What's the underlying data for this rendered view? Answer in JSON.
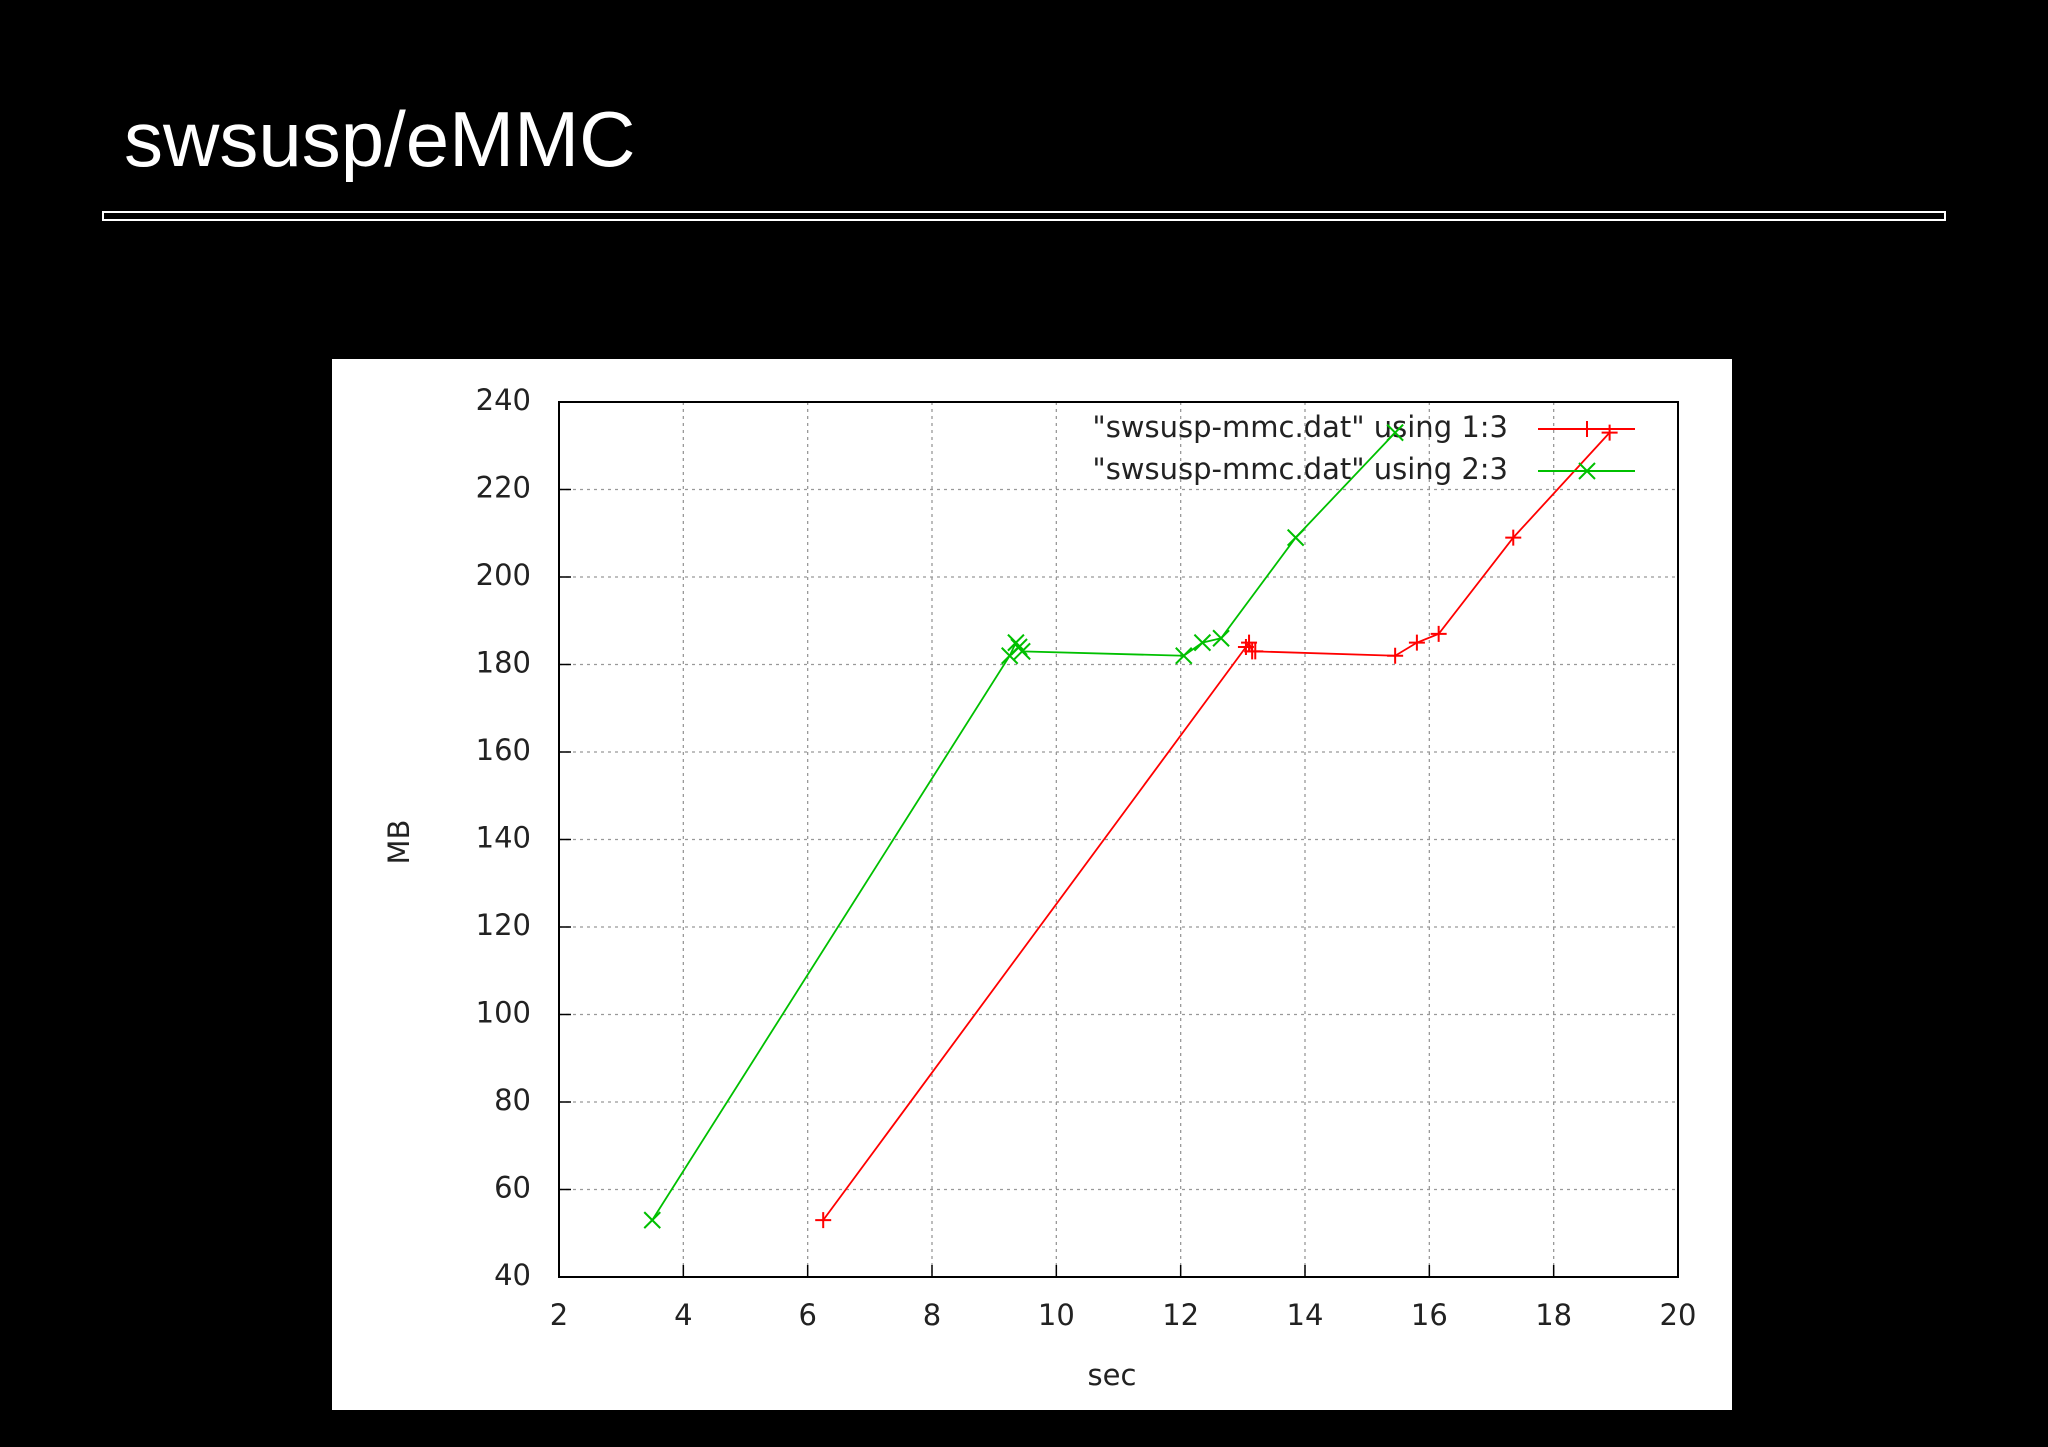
{
  "slide": {
    "title": "swsusp/eMMC"
  },
  "chart_data": {
    "type": "line",
    "x_label": "sec",
    "y_label": "MB",
    "xlim": [
      2,
      20
    ],
    "xticks": [
      2,
      4,
      6,
      8,
      10,
      12,
      14,
      16,
      18,
      20
    ],
    "ylim": [
      40,
      240
    ],
    "yticks": [
      40,
      60,
      80,
      100,
      120,
      140,
      160,
      180,
      200,
      220,
      240
    ],
    "grid": true,
    "legend": "top-right",
    "series": [
      {
        "name": "\"swsusp-mmc.dat\" using 1:3",
        "color": "#ff0000",
        "marker": "+",
        "x": [
          6.25,
          13.05,
          13.1,
          13.15,
          13.2,
          15.45,
          15.8,
          16.15,
          17.35,
          18.9
        ],
        "values": [
          53,
          184,
          185,
          183,
          183,
          182,
          185,
          187,
          209,
          233
        ]
      },
      {
        "name": "\"swsusp-mmc.dat\" using 2:3",
        "color": "#00c000",
        "marker": "x",
        "x": [
          3.5,
          9.25,
          9.35,
          9.4,
          9.45,
          12.05,
          12.35,
          12.65,
          13.85,
          15.45
        ],
        "values": [
          53,
          182,
          185,
          184,
          183,
          182,
          185,
          186,
          209,
          233
        ]
      }
    ]
  }
}
